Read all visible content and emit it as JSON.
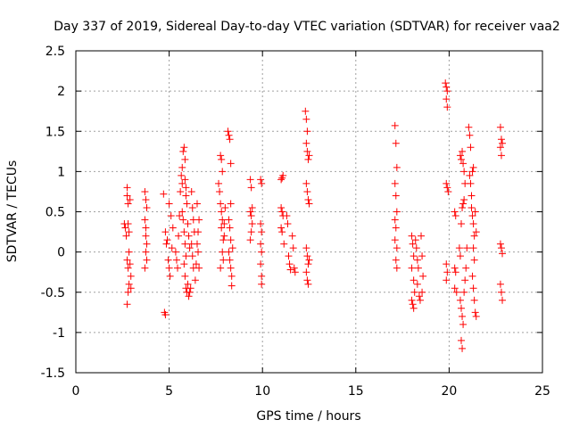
{
  "chart_data": {
    "type": "scatter",
    "title": "Day 337 of 2019, Sidereal Day-to-day VTEC variation (SDTVAR) for receiver vaa2",
    "xlabel": "GPS time / hours",
    "ylabel": "SDTVAR / TECUs",
    "xlim": [
      0,
      25
    ],
    "ylim": [
      -1.5,
      2.5
    ],
    "xticks": [
      "0",
      "5",
      "10",
      "15",
      "20",
      "25"
    ],
    "yticks": [
      "-1.5",
      "-1",
      "-0.5",
      "0",
      "0.5",
      "1",
      "1.5",
      "2",
      "2.5"
    ],
    "xtick_values": [
      0,
      5,
      10,
      15,
      20,
      25
    ],
    "ytick_values": [
      -1.5,
      -1,
      -0.5,
      0,
      0.5,
      1,
      1.5,
      2,
      2.5
    ],
    "grid": true,
    "marker": "+",
    "color": "#ff0000",
    "series": [
      {
        "name": "SDTVAR",
        "points": [
          [
            2.6,
            0.35
          ],
          [
            2.65,
            0.3
          ],
          [
            2.7,
            0.2
          ],
          [
            2.75,
            0.8
          ],
          [
            2.75,
            0.7
          ],
          [
            2.8,
            0.6
          ],
          [
            2.8,
            0.35
          ],
          [
            2.85,
            0.25
          ],
          [
            2.75,
            -0.1
          ],
          [
            2.8,
            -0.2
          ],
          [
            2.85,
            -0.4
          ],
          [
            2.8,
            -0.5
          ],
          [
            2.75,
            -0.65
          ],
          [
            2.85,
            0.0
          ],
          [
            2.9,
            -0.15
          ],
          [
            2.95,
            -0.3
          ],
          [
            2.9,
            0.65
          ],
          [
            2.95,
            -0.45
          ],
          [
            3.7,
            0.75
          ],
          [
            3.75,
            0.65
          ],
          [
            3.7,
            0.4
          ],
          [
            3.75,
            0.2
          ],
          [
            3.8,
            0.1
          ],
          [
            3.75,
            0.0
          ],
          [
            3.8,
            -0.1
          ],
          [
            3.7,
            -0.2
          ],
          [
            3.8,
            0.55
          ],
          [
            3.75,
            0.3
          ],
          [
            4.7,
            0.72
          ],
          [
            4.75,
            -0.75
          ],
          [
            4.8,
            -0.78
          ],
          [
            4.8,
            0.25
          ],
          [
            4.85,
            0.1
          ],
          [
            4.9,
            0.15
          ],
          [
            4.95,
            -0.1
          ],
          [
            5.0,
            -0.2
          ],
          [
            5.05,
            -0.3
          ],
          [
            5.0,
            0.6
          ],
          [
            5.1,
            0.45
          ],
          [
            5.15,
            0.05
          ],
          [
            5.2,
            0.3
          ],
          [
            5.35,
            0.0
          ],
          [
            5.4,
            -0.1
          ],
          [
            5.45,
            -0.2
          ],
          [
            5.5,
            0.2
          ],
          [
            5.55,
            0.45
          ],
          [
            5.6,
            0.75
          ],
          [
            5.65,
            0.95
          ],
          [
            5.7,
            1.05
          ],
          [
            5.7,
            0.85
          ],
          [
            5.75,
            1.25
          ],
          [
            5.8,
            1.3
          ],
          [
            5.85,
            1.15
          ],
          [
            5.85,
            0.9
          ],
          [
            5.9,
            0.8
          ],
          [
            5.9,
            0.7
          ],
          [
            5.95,
            0.6
          ],
          [
            5.7,
            0.5
          ],
          [
            5.75,
            0.4
          ],
          [
            5.8,
            0.25
          ],
          [
            5.85,
            0.1
          ],
          [
            5.9,
            -0.05
          ],
          [
            5.8,
            -0.15
          ],
          [
            5.85,
            -0.3
          ],
          [
            5.9,
            -0.45
          ],
          [
            5.95,
            -0.5
          ],
          [
            6.0,
            0.35
          ],
          [
            6.05,
            0.2
          ],
          [
            6.1,
            0.05
          ],
          [
            6.0,
            -0.4
          ],
          [
            6.05,
            -0.55
          ],
          [
            6.1,
            -0.5
          ],
          [
            6.15,
            -0.45
          ],
          [
            6.2,
            0.75
          ],
          [
            6.25,
            0.55
          ],
          [
            6.3,
            0.4
          ],
          [
            6.35,
            0.25
          ],
          [
            6.2,
            0.1
          ],
          [
            6.25,
            -0.05
          ],
          [
            6.3,
            -0.2
          ],
          [
            6.4,
            -0.35
          ],
          [
            6.45,
            -0.15
          ],
          [
            6.5,
            0.1
          ],
          [
            6.55,
            0.25
          ],
          [
            6.6,
            0.4
          ],
          [
            6.5,
            0.6
          ],
          [
            6.55,
            0.0
          ],
          [
            6.6,
            -0.2
          ],
          [
            7.65,
            0.85
          ],
          [
            7.7,
            0.75
          ],
          [
            7.75,
            1.2
          ],
          [
            7.8,
            1.15
          ],
          [
            7.85,
            1.0
          ],
          [
            7.75,
            0.6
          ],
          [
            7.8,
            0.5
          ],
          [
            7.85,
            0.4
          ],
          [
            7.8,
            0.3
          ],
          [
            7.9,
            0.15
          ],
          [
            7.85,
            0.0
          ],
          [
            7.9,
            -0.1
          ],
          [
            7.75,
            -0.2
          ],
          [
            7.95,
            0.2
          ],
          [
            7.95,
            0.35
          ],
          [
            8.0,
            0.55
          ],
          [
            8.15,
            1.5
          ],
          [
            8.2,
            1.45
          ],
          [
            8.25,
            1.4
          ],
          [
            8.3,
            1.1
          ],
          [
            8.2,
            0.4
          ],
          [
            8.25,
            0.3
          ],
          [
            8.3,
            0.15
          ],
          [
            8.2,
            0.0
          ],
          [
            8.25,
            -0.1
          ],
          [
            8.3,
            -0.2
          ],
          [
            8.35,
            -0.3
          ],
          [
            8.35,
            -0.42
          ],
          [
            8.4,
            0.05
          ],
          [
            8.3,
            0.6
          ],
          [
            9.35,
            0.9
          ],
          [
            9.4,
            0.8
          ],
          [
            9.35,
            0.5
          ],
          [
            9.4,
            0.45
          ],
          [
            9.45,
            0.35
          ],
          [
            9.4,
            0.25
          ],
          [
            9.35,
            0.15
          ],
          [
            9.45,
            0.55
          ],
          [
            9.9,
            0.9
          ],
          [
            9.95,
            0.85
          ],
          [
            9.9,
            0.35
          ],
          [
            9.95,
            0.25
          ],
          [
            9.9,
            0.1
          ],
          [
            9.95,
            0.0
          ],
          [
            9.9,
            -0.15
          ],
          [
            9.95,
            -0.3
          ],
          [
            9.95,
            -0.4
          ],
          [
            11.0,
            0.9
          ],
          [
            11.05,
            0.92
          ],
          [
            11.1,
            0.95
          ],
          [
            11.0,
            0.55
          ],
          [
            11.05,
            0.5
          ],
          [
            11.1,
            0.45
          ],
          [
            11.0,
            0.3
          ],
          [
            11.05,
            0.25
          ],
          [
            11.15,
            0.1
          ],
          [
            11.3,
            0.45
          ],
          [
            11.35,
            0.35
          ],
          [
            11.4,
            -0.05
          ],
          [
            11.45,
            -0.15
          ],
          [
            11.5,
            -0.22
          ],
          [
            11.6,
            0.2
          ],
          [
            11.65,
            0.05
          ],
          [
            11.7,
            -0.2
          ],
          [
            11.75,
            -0.25
          ],
          [
            12.3,
            1.75
          ],
          [
            12.35,
            1.65
          ],
          [
            12.4,
            1.5
          ],
          [
            12.35,
            1.35
          ],
          [
            12.4,
            1.25
          ],
          [
            12.45,
            1.15
          ],
          [
            12.5,
            1.2
          ],
          [
            12.35,
            0.85
          ],
          [
            12.4,
            0.75
          ],
          [
            12.45,
            0.65
          ],
          [
            12.5,
            0.6
          ],
          [
            12.35,
            0.05
          ],
          [
            12.4,
            -0.05
          ],
          [
            12.45,
            -0.15
          ],
          [
            12.35,
            -0.25
          ],
          [
            12.4,
            -0.35
          ],
          [
            12.45,
            -0.4
          ],
          [
            12.5,
            -0.1
          ],
          [
            17.1,
            1.57
          ],
          [
            17.15,
            1.35
          ],
          [
            17.2,
            1.05
          ],
          [
            17.1,
            0.85
          ],
          [
            17.15,
            0.7
          ],
          [
            17.2,
            0.5
          ],
          [
            17.15,
            0.3
          ],
          [
            17.1,
            0.15
          ],
          [
            17.2,
            0.05
          ],
          [
            17.15,
            -0.1
          ],
          [
            17.2,
            -0.2
          ],
          [
            17.1,
            0.4
          ],
          [
            18.0,
            0.2
          ],
          [
            18.05,
            0.1
          ],
          [
            18.1,
            -0.05
          ],
          [
            18.0,
            -0.2
          ],
          [
            18.1,
            -0.35
          ],
          [
            18.15,
            -0.5
          ],
          [
            18.0,
            -0.6
          ],
          [
            18.05,
            -0.65
          ],
          [
            18.1,
            -0.7
          ],
          [
            18.2,
            0.15
          ],
          [
            18.25,
            0.05
          ],
          [
            18.3,
            -0.1
          ],
          [
            18.35,
            -0.2
          ],
          [
            18.3,
            -0.4
          ],
          [
            18.4,
            -0.55
          ],
          [
            18.45,
            -0.6
          ],
          [
            18.5,
            0.2
          ],
          [
            18.55,
            -0.05
          ],
          [
            18.6,
            -0.3
          ],
          [
            18.55,
            -0.5
          ],
          [
            19.8,
            2.1
          ],
          [
            19.85,
            2.05
          ],
          [
            19.9,
            2.0
          ],
          [
            19.85,
            1.9
          ],
          [
            19.9,
            1.8
          ],
          [
            19.85,
            0.85
          ],
          [
            19.9,
            0.8
          ],
          [
            19.95,
            0.75
          ],
          [
            19.85,
            -0.15
          ],
          [
            19.9,
            -0.25
          ],
          [
            19.85,
            -0.35
          ],
          [
            20.3,
            0.5
          ],
          [
            20.35,
            0.45
          ],
          [
            20.3,
            -0.2
          ],
          [
            20.35,
            -0.25
          ],
          [
            20.3,
            -0.45
          ],
          [
            20.4,
            -0.5
          ],
          [
            20.55,
            0.05
          ],
          [
            20.6,
            -0.05
          ],
          [
            20.65,
            0.35
          ],
          [
            20.7,
            0.55
          ],
          [
            20.75,
            0.6
          ],
          [
            20.8,
            0.65
          ],
          [
            20.6,
            1.2
          ],
          [
            20.65,
            1.15
          ],
          [
            20.7,
            1.25
          ],
          [
            20.75,
            1.1
          ],
          [
            20.8,
            1.0
          ],
          [
            20.85,
            0.85
          ],
          [
            20.6,
            -0.6
          ],
          [
            20.65,
            -0.7
          ],
          [
            20.7,
            -0.8
          ],
          [
            20.75,
            -0.9
          ],
          [
            20.65,
            -1.1
          ],
          [
            20.7,
            -1.2
          ],
          [
            20.8,
            -0.5
          ],
          [
            20.85,
            -0.35
          ],
          [
            20.9,
            -0.2
          ],
          [
            20.95,
            0.05
          ],
          [
            21.05,
            1.55
          ],
          [
            21.1,
            1.45
          ],
          [
            21.15,
            1.3
          ],
          [
            21.1,
            0.95
          ],
          [
            21.15,
            0.85
          ],
          [
            21.2,
            0.7
          ],
          [
            21.25,
            1.0
          ],
          [
            21.3,
            1.05
          ],
          [
            21.2,
            0.55
          ],
          [
            21.25,
            0.45
          ],
          [
            21.3,
            0.35
          ],
          [
            21.35,
            0.2
          ],
          [
            21.3,
            0.05
          ],
          [
            21.35,
            -0.1
          ],
          [
            21.25,
            -0.3
          ],
          [
            21.3,
            -0.45
          ],
          [
            21.35,
            -0.6
          ],
          [
            21.4,
            -0.75
          ],
          [
            21.45,
            -0.8
          ],
          [
            21.4,
            0.5
          ],
          [
            21.45,
            0.25
          ],
          [
            22.75,
            1.55
          ],
          [
            22.8,
            1.4
          ],
          [
            22.75,
            1.3
          ],
          [
            22.8,
            1.2
          ],
          [
            22.85,
            1.35
          ],
          [
            22.75,
            0.1
          ],
          [
            22.8,
            0.05
          ],
          [
            22.85,
            -0.02
          ],
          [
            22.75,
            -0.4
          ],
          [
            22.8,
            -0.5
          ],
          [
            22.85,
            -0.6
          ]
        ]
      }
    ]
  }
}
